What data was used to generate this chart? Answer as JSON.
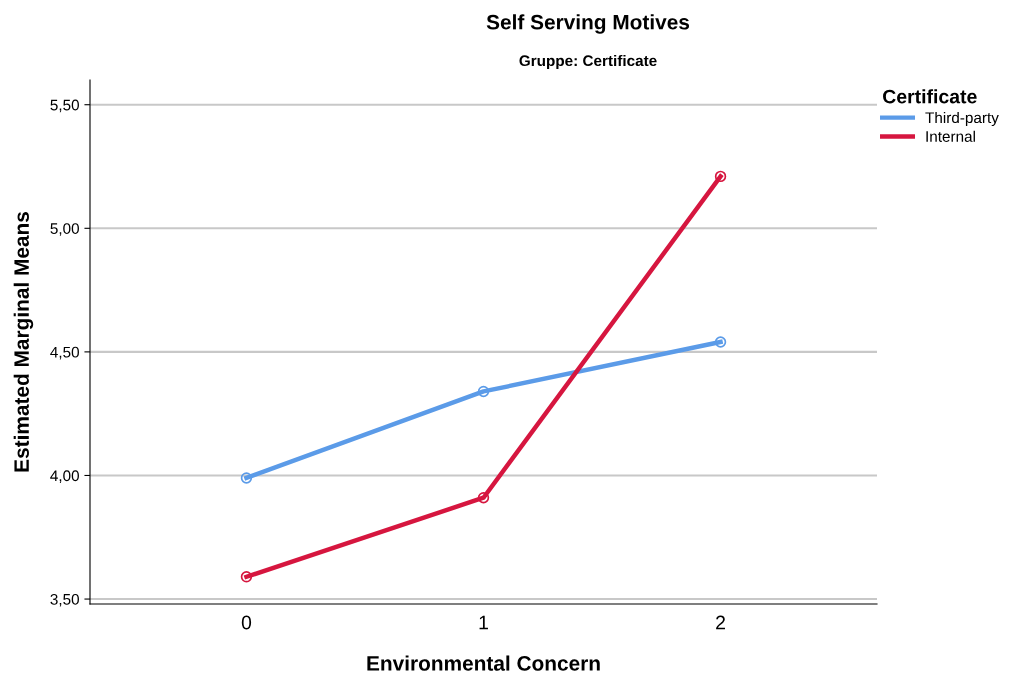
{
  "chart_data": {
    "type": "line",
    "title": "Self Serving Motives",
    "subtitle": "Gruppe: Certificate",
    "xlabel": "Environmental Concern",
    "ylabel": "Estimated Marginal Means",
    "legend_title": "Certificate",
    "categories": [
      "0",
      "1",
      "2"
    ],
    "series": [
      {
        "name": "Third-party",
        "color": "#5b9be8",
        "values": [
          3.99,
          4.34,
          4.54
        ]
      },
      {
        "name": "Internal",
        "color": "#d6163f",
        "values": [
          3.59,
          3.91,
          5.21
        ]
      }
    ],
    "ylim": [
      3.48,
      5.6
    ],
    "yticks": [
      {
        "value": 3.5,
        "label": "3,50"
      },
      {
        "value": 4.0,
        "label": "4,00"
      },
      {
        "value": 4.5,
        "label": "4,50"
      },
      {
        "value": 5.0,
        "label": "5,00"
      },
      {
        "value": 5.5,
        "label": "5,50"
      }
    ],
    "grid": "y",
    "legend": "top right",
    "marker": "circle",
    "line_style": "solid"
  }
}
